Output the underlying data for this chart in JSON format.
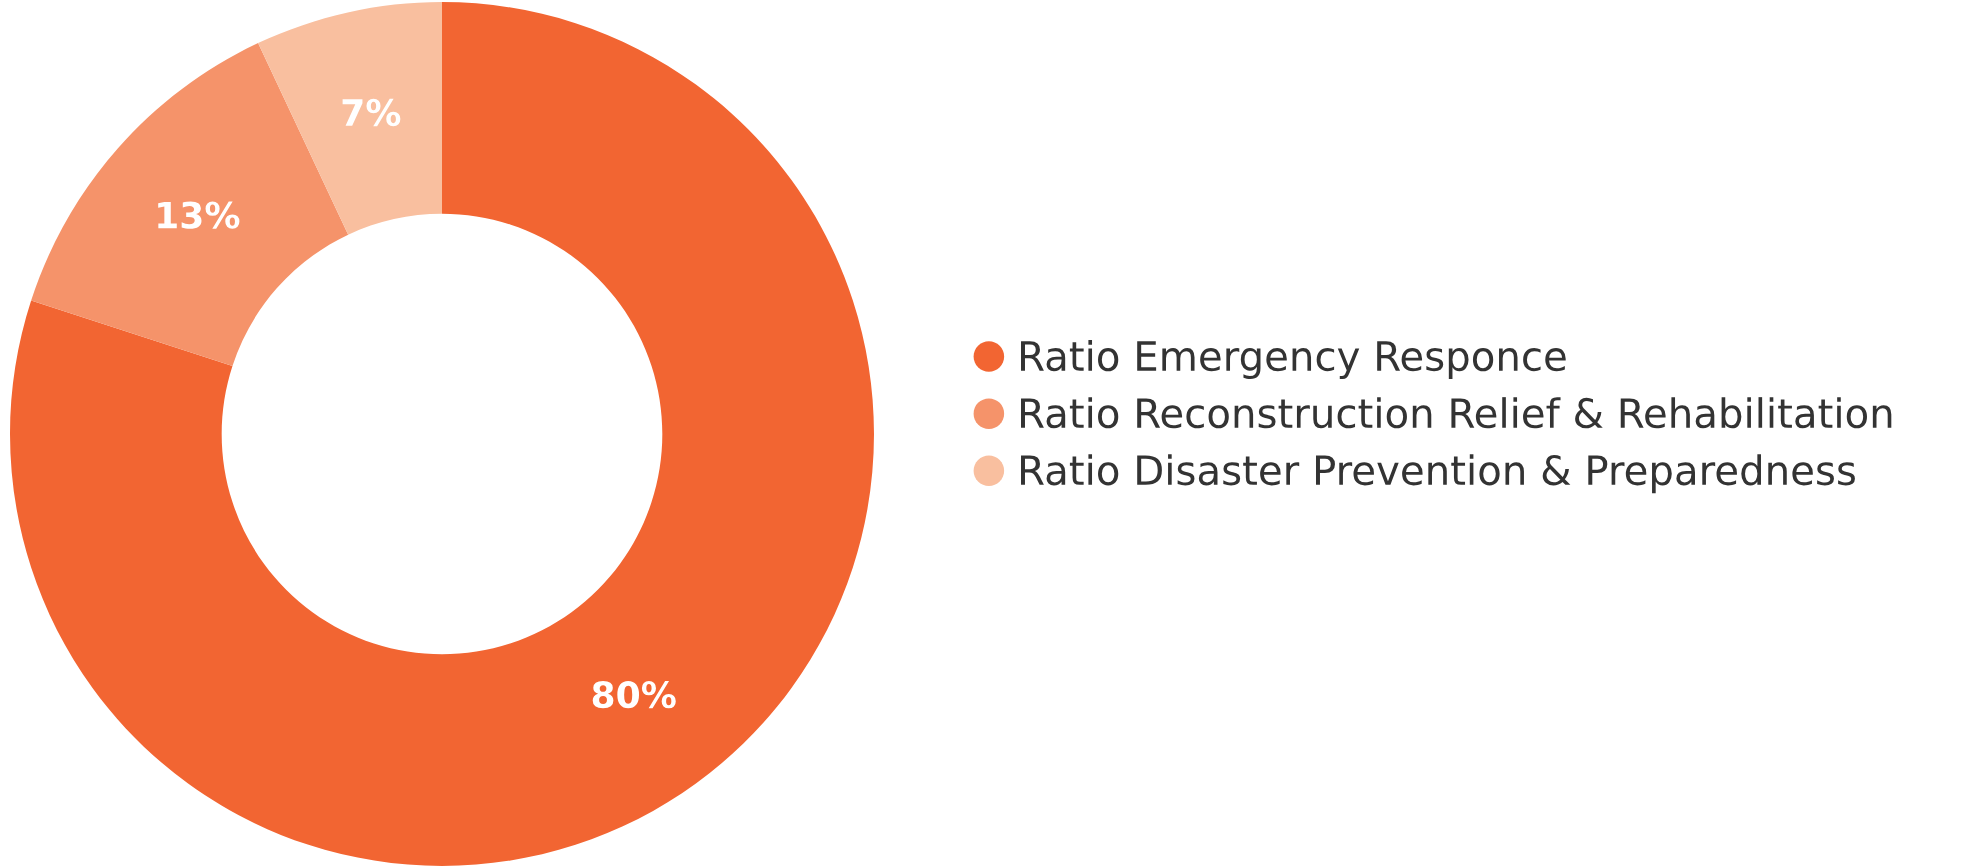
{
  "chart_data": {
    "type": "donut",
    "categories": [
      "Ratio Emergency Responce",
      "Ratio Reconstruction Relief & Rehabilitation",
      "Ratio Disaster Prevention & Preparedness"
    ],
    "values": [
      80,
      13,
      7
    ],
    "colors": [
      "#f26532",
      "#f5936a",
      "#f9bf9f"
    ],
    "value_labels": [
      "80%",
      "13%",
      "7%"
    ],
    "legend": "right"
  }
}
